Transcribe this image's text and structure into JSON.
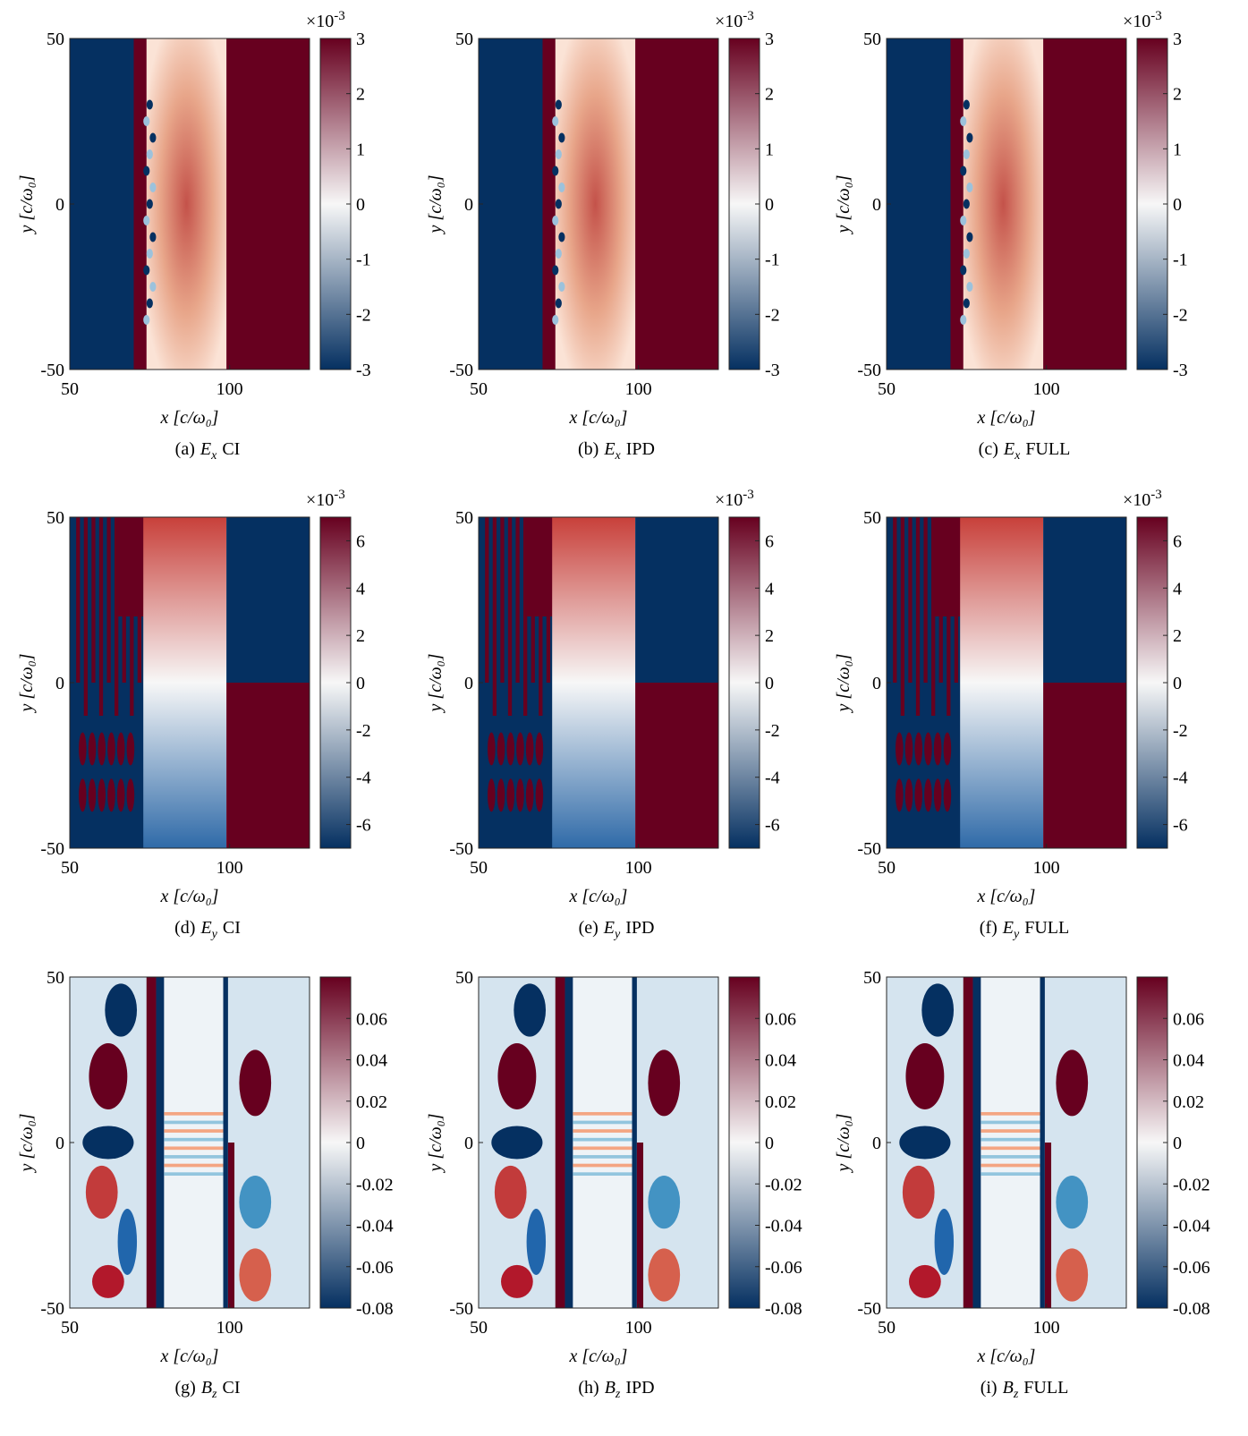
{
  "chart_data": [
    {
      "type": "heatmap",
      "caption": {
        "label": "(a)",
        "symbol": "E",
        "subscript": "x",
        "method": "CI"
      },
      "xlabel": "x [c/ω₀]",
      "ylabel": "y [c/ω₀]",
      "xlim": [
        50,
        125
      ],
      "ylim": [
        -50,
        50
      ],
      "xticks": [
        50,
        100
      ],
      "yticks": [
        -50,
        0,
        50
      ],
      "colorbar": {
        "lim": [
          -3,
          3
        ],
        "ticks": [
          -3,
          -2,
          -1,
          0,
          1,
          2,
          3
        ],
        "multiplier": {
          "base": "×10",
          "exponent": "-3"
        },
        "colormap": [
          "#053061",
          "#f7f7f7",
          "#67001f"
        ]
      }
    },
    {
      "type": "heatmap",
      "caption": {
        "label": "(b)",
        "symbol": "E",
        "subscript": "x",
        "method": "IPD"
      },
      "xlabel": "x [c/ω₀]",
      "ylabel": "y [c/ω₀]",
      "xlim": [
        50,
        125
      ],
      "ylim": [
        -50,
        50
      ],
      "xticks": [
        50,
        100
      ],
      "yticks": [
        -50,
        0,
        50
      ],
      "colorbar": {
        "lim": [
          -3,
          3
        ],
        "ticks": [
          -3,
          -2,
          -1,
          0,
          1,
          2,
          3
        ],
        "multiplier": {
          "base": "×10",
          "exponent": "-3"
        },
        "colormap": [
          "#053061",
          "#f7f7f7",
          "#67001f"
        ]
      }
    },
    {
      "type": "heatmap",
      "caption": {
        "label": "(c)",
        "symbol": "E",
        "subscript": "x",
        "method": "FULL"
      },
      "xlabel": "x [c/ω₀]",
      "ylabel": "y [c/ω₀]",
      "xlim": [
        50,
        125
      ],
      "ylim": [
        -50,
        50
      ],
      "xticks": [
        50,
        100
      ],
      "yticks": [
        -50,
        0,
        50
      ],
      "colorbar": {
        "lim": [
          -3,
          3
        ],
        "ticks": [
          -3,
          -2,
          -1,
          0,
          1,
          2,
          3
        ],
        "multiplier": {
          "base": "×10",
          "exponent": "-3"
        },
        "colormap": [
          "#053061",
          "#f7f7f7",
          "#67001f"
        ]
      }
    },
    {
      "type": "heatmap",
      "caption": {
        "label": "(d)",
        "symbol": "E",
        "subscript": "y",
        "method": "CI"
      },
      "xlabel": "x [c/ω₀]",
      "ylabel": "y [c/ω₀]",
      "xlim": [
        50,
        125
      ],
      "ylim": [
        -50,
        50
      ],
      "xticks": [
        50,
        100
      ],
      "yticks": [
        -50,
        0,
        50
      ],
      "colorbar": {
        "lim": [
          -7,
          7
        ],
        "ticks": [
          -6,
          -4,
          -2,
          0,
          2,
          4,
          6
        ],
        "multiplier": {
          "base": "×10",
          "exponent": "-3"
        },
        "colormap": [
          "#053061",
          "#f7f7f7",
          "#67001f"
        ]
      }
    },
    {
      "type": "heatmap",
      "caption": {
        "label": "(e)",
        "symbol": "E",
        "subscript": "y",
        "method": "IPD"
      },
      "xlabel": "x [c/ω₀]",
      "ylabel": "y [c/ω₀]",
      "xlim": [
        50,
        125
      ],
      "ylim": [
        -50,
        50
      ],
      "xticks": [
        50,
        100
      ],
      "yticks": [
        -50,
        0,
        50
      ],
      "colorbar": {
        "lim": [
          -7,
          7
        ],
        "ticks": [
          -6,
          -4,
          -2,
          0,
          2,
          4,
          6
        ],
        "multiplier": {
          "base": "×10",
          "exponent": "-3"
        },
        "colormap": [
          "#053061",
          "#f7f7f7",
          "#67001f"
        ]
      }
    },
    {
      "type": "heatmap",
      "caption": {
        "label": "(f)",
        "symbol": "E",
        "subscript": "y",
        "method": "FULL"
      },
      "xlabel": "x [c/ω₀]",
      "ylabel": "y [c/ω₀]",
      "xlim": [
        50,
        125
      ],
      "ylim": [
        -50,
        50
      ],
      "xticks": [
        50,
        100
      ],
      "yticks": [
        -50,
        0,
        50
      ],
      "colorbar": {
        "lim": [
          -7,
          7
        ],
        "ticks": [
          -6,
          -4,
          -2,
          0,
          2,
          4,
          6
        ],
        "multiplier": {
          "base": "×10",
          "exponent": "-3"
        },
        "colormap": [
          "#053061",
          "#f7f7f7",
          "#67001f"
        ]
      }
    },
    {
      "type": "heatmap",
      "caption": {
        "label": "(g)",
        "symbol": "B",
        "subscript": "z",
        "method": "CI"
      },
      "xlabel": "x [c/ω₀]",
      "ylabel": "y [c/ω₀]",
      "xlim": [
        50,
        125
      ],
      "ylim": [
        -50,
        50
      ],
      "xticks": [
        50,
        100
      ],
      "yticks": [
        -50,
        0,
        50
      ],
      "colorbar": {
        "lim": [
          -0.08,
          0.08
        ],
        "ticks": [
          -0.08,
          -0.06,
          -0.04,
          -0.02,
          0,
          0.02,
          0.04,
          0.06
        ],
        "colormap": [
          "#053061",
          "#f7f7f7",
          "#67001f"
        ]
      }
    },
    {
      "type": "heatmap",
      "caption": {
        "label": "(h)",
        "symbol": "B",
        "subscript": "z",
        "method": "IPD"
      },
      "xlabel": "x [c/ω₀]",
      "ylabel": "y [c/ω₀]",
      "xlim": [
        50,
        125
      ],
      "ylim": [
        -50,
        50
      ],
      "xticks": [
        50,
        100
      ],
      "yticks": [
        -50,
        0,
        50
      ],
      "colorbar": {
        "lim": [
          -0.08,
          0.08
        ],
        "ticks": [
          -0.08,
          -0.06,
          -0.04,
          -0.02,
          0,
          0.02,
          0.04,
          0.06
        ],
        "colormap": [
          "#053061",
          "#f7f7f7",
          "#67001f"
        ]
      }
    },
    {
      "type": "heatmap",
      "caption": {
        "label": "(i)",
        "symbol": "B",
        "subscript": "z",
        "method": "FULL"
      },
      "xlabel": "x [c/ω₀]",
      "ylabel": "y [c/ω₀]",
      "xlim": [
        50,
        125
      ],
      "ylim": [
        -50,
        50
      ],
      "xticks": [
        50,
        100
      ],
      "yticks": [
        -50,
        0,
        50
      ],
      "colorbar": {
        "lim": [
          -0.08,
          0.08
        ],
        "ticks": [
          -0.08,
          -0.06,
          -0.04,
          -0.02,
          0,
          0.02,
          0.04,
          0.06
        ],
        "colormap": [
          "#053061",
          "#f7f7f7",
          "#67001f"
        ]
      }
    }
  ]
}
